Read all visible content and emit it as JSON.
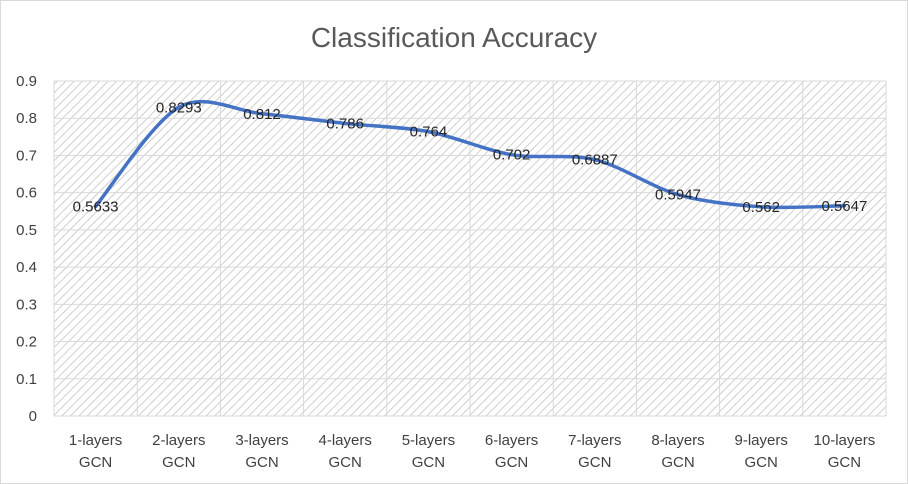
{
  "chart_data": {
    "type": "line",
    "title": "Classification Accuracy",
    "categories": [
      [
        "1-layers",
        "GCN"
      ],
      [
        "2-layers",
        "GCN"
      ],
      [
        "3-layers",
        "GCN"
      ],
      [
        "4-layers",
        "GCN"
      ],
      [
        "5-layers",
        "GCN"
      ],
      [
        "6-layers",
        "GCN"
      ],
      [
        "7-layers",
        "GCN"
      ],
      [
        "8-layers",
        "GCN"
      ],
      [
        "9-layers",
        "GCN"
      ],
      [
        "10-layers",
        "GCN"
      ]
    ],
    "series": [
      {
        "values": [
          0.5633,
          0.8293,
          0.812,
          0.786,
          0.764,
          0.702,
          0.6887,
          0.5947,
          0.562,
          0.5647
        ],
        "labels": [
          "0.5633",
          "0.8293",
          "0.812",
          "0.786",
          "0.764",
          "0.702",
          "0.6887",
          "0.5947",
          "0.562",
          "0.5647"
        ],
        "color": "#4472c4"
      }
    ],
    "ylim": [
      0,
      0.9
    ],
    "yticks": [
      "0",
      "0.1",
      "0.2",
      "0.3",
      "0.4",
      "0.5",
      "0.6",
      "0.7",
      "0.8",
      "0.9"
    ],
    "grid": true,
    "plot_background": "diagonal-hatch",
    "legend": "none"
  }
}
